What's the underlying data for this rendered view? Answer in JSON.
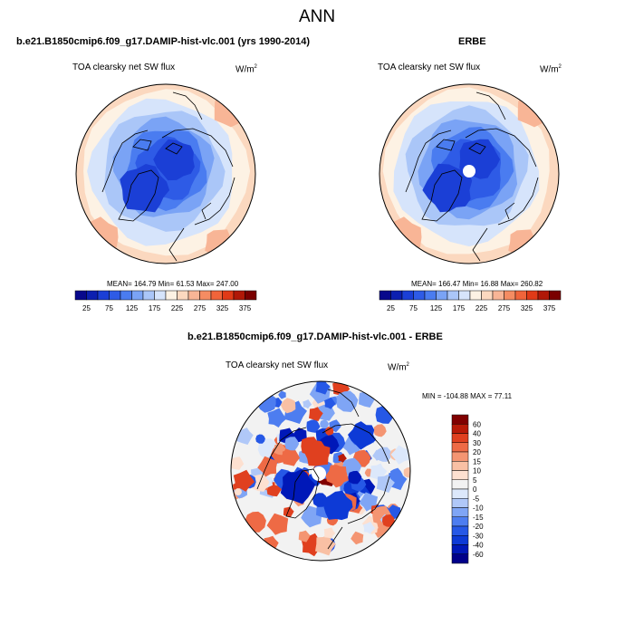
{
  "title": "ANN",
  "units_base": "W/m",
  "units_exp": "2",
  "colors": {
    "abs_scale": [
      "#08088c",
      "#0c1fb0",
      "#1b3fd6",
      "#2e5be6",
      "#4a7cf0",
      "#7aa3f5",
      "#aac6f8",
      "#d6e4fb",
      "#fdf2e4",
      "#fbd8bf",
      "#f8b596",
      "#f58c62",
      "#f0643a",
      "#e03a17",
      "#b01807",
      "#7a0000"
    ],
    "diff_scale": [
      "#00008a",
      "#0018b8",
      "#0d3ad6",
      "#2658e6",
      "#4d7df0",
      "#7fa5f5",
      "#b0c8f8",
      "#dce8fb",
      "#f2f2f2",
      "#fde0d0",
      "#f9c0a4",
      "#f49572",
      "#ee6a45",
      "#e0401f",
      "#b81a07",
      "#800000"
    ],
    "land_line": "#000000"
  },
  "panels": [
    {
      "title": "b.e21.B1850cmip6.f09_g17.DAMIP-hist-vlc.001 (yrs 1990-2014)",
      "subtitle": "TOA clearsky net SW flux",
      "stats": "MEAN= 164.79  Min= 61.53  Max= 247.00",
      "colorbar_labels": [
        "25",
        "75",
        "125",
        "175",
        "225",
        "275",
        "325",
        "375"
      ]
    },
    {
      "title": "ERBE",
      "subtitle": "TOA clearsky net SW flux",
      "stats": "MEAN= 166.47  Min= 16.88  Max= 260.82",
      "colorbar_labels": [
        "25",
        "75",
        "125",
        "175",
        "225",
        "275",
        "325",
        "375"
      ]
    },
    {
      "title": "b.e21.B1850cmip6.f09_g17.DAMIP-hist-vlc.001 - ERBE",
      "subtitle": "TOA clearsky net SW flux",
      "stats": "MIN = -104.88  MAX =  77.11",
      "colorbar_labels": [
        "60",
        "40",
        "30",
        "20",
        "15",
        "10",
        "5",
        "0",
        "-5",
        "-10",
        "-15",
        "-20",
        "-30",
        "-40",
        "-60"
      ]
    }
  ]
}
